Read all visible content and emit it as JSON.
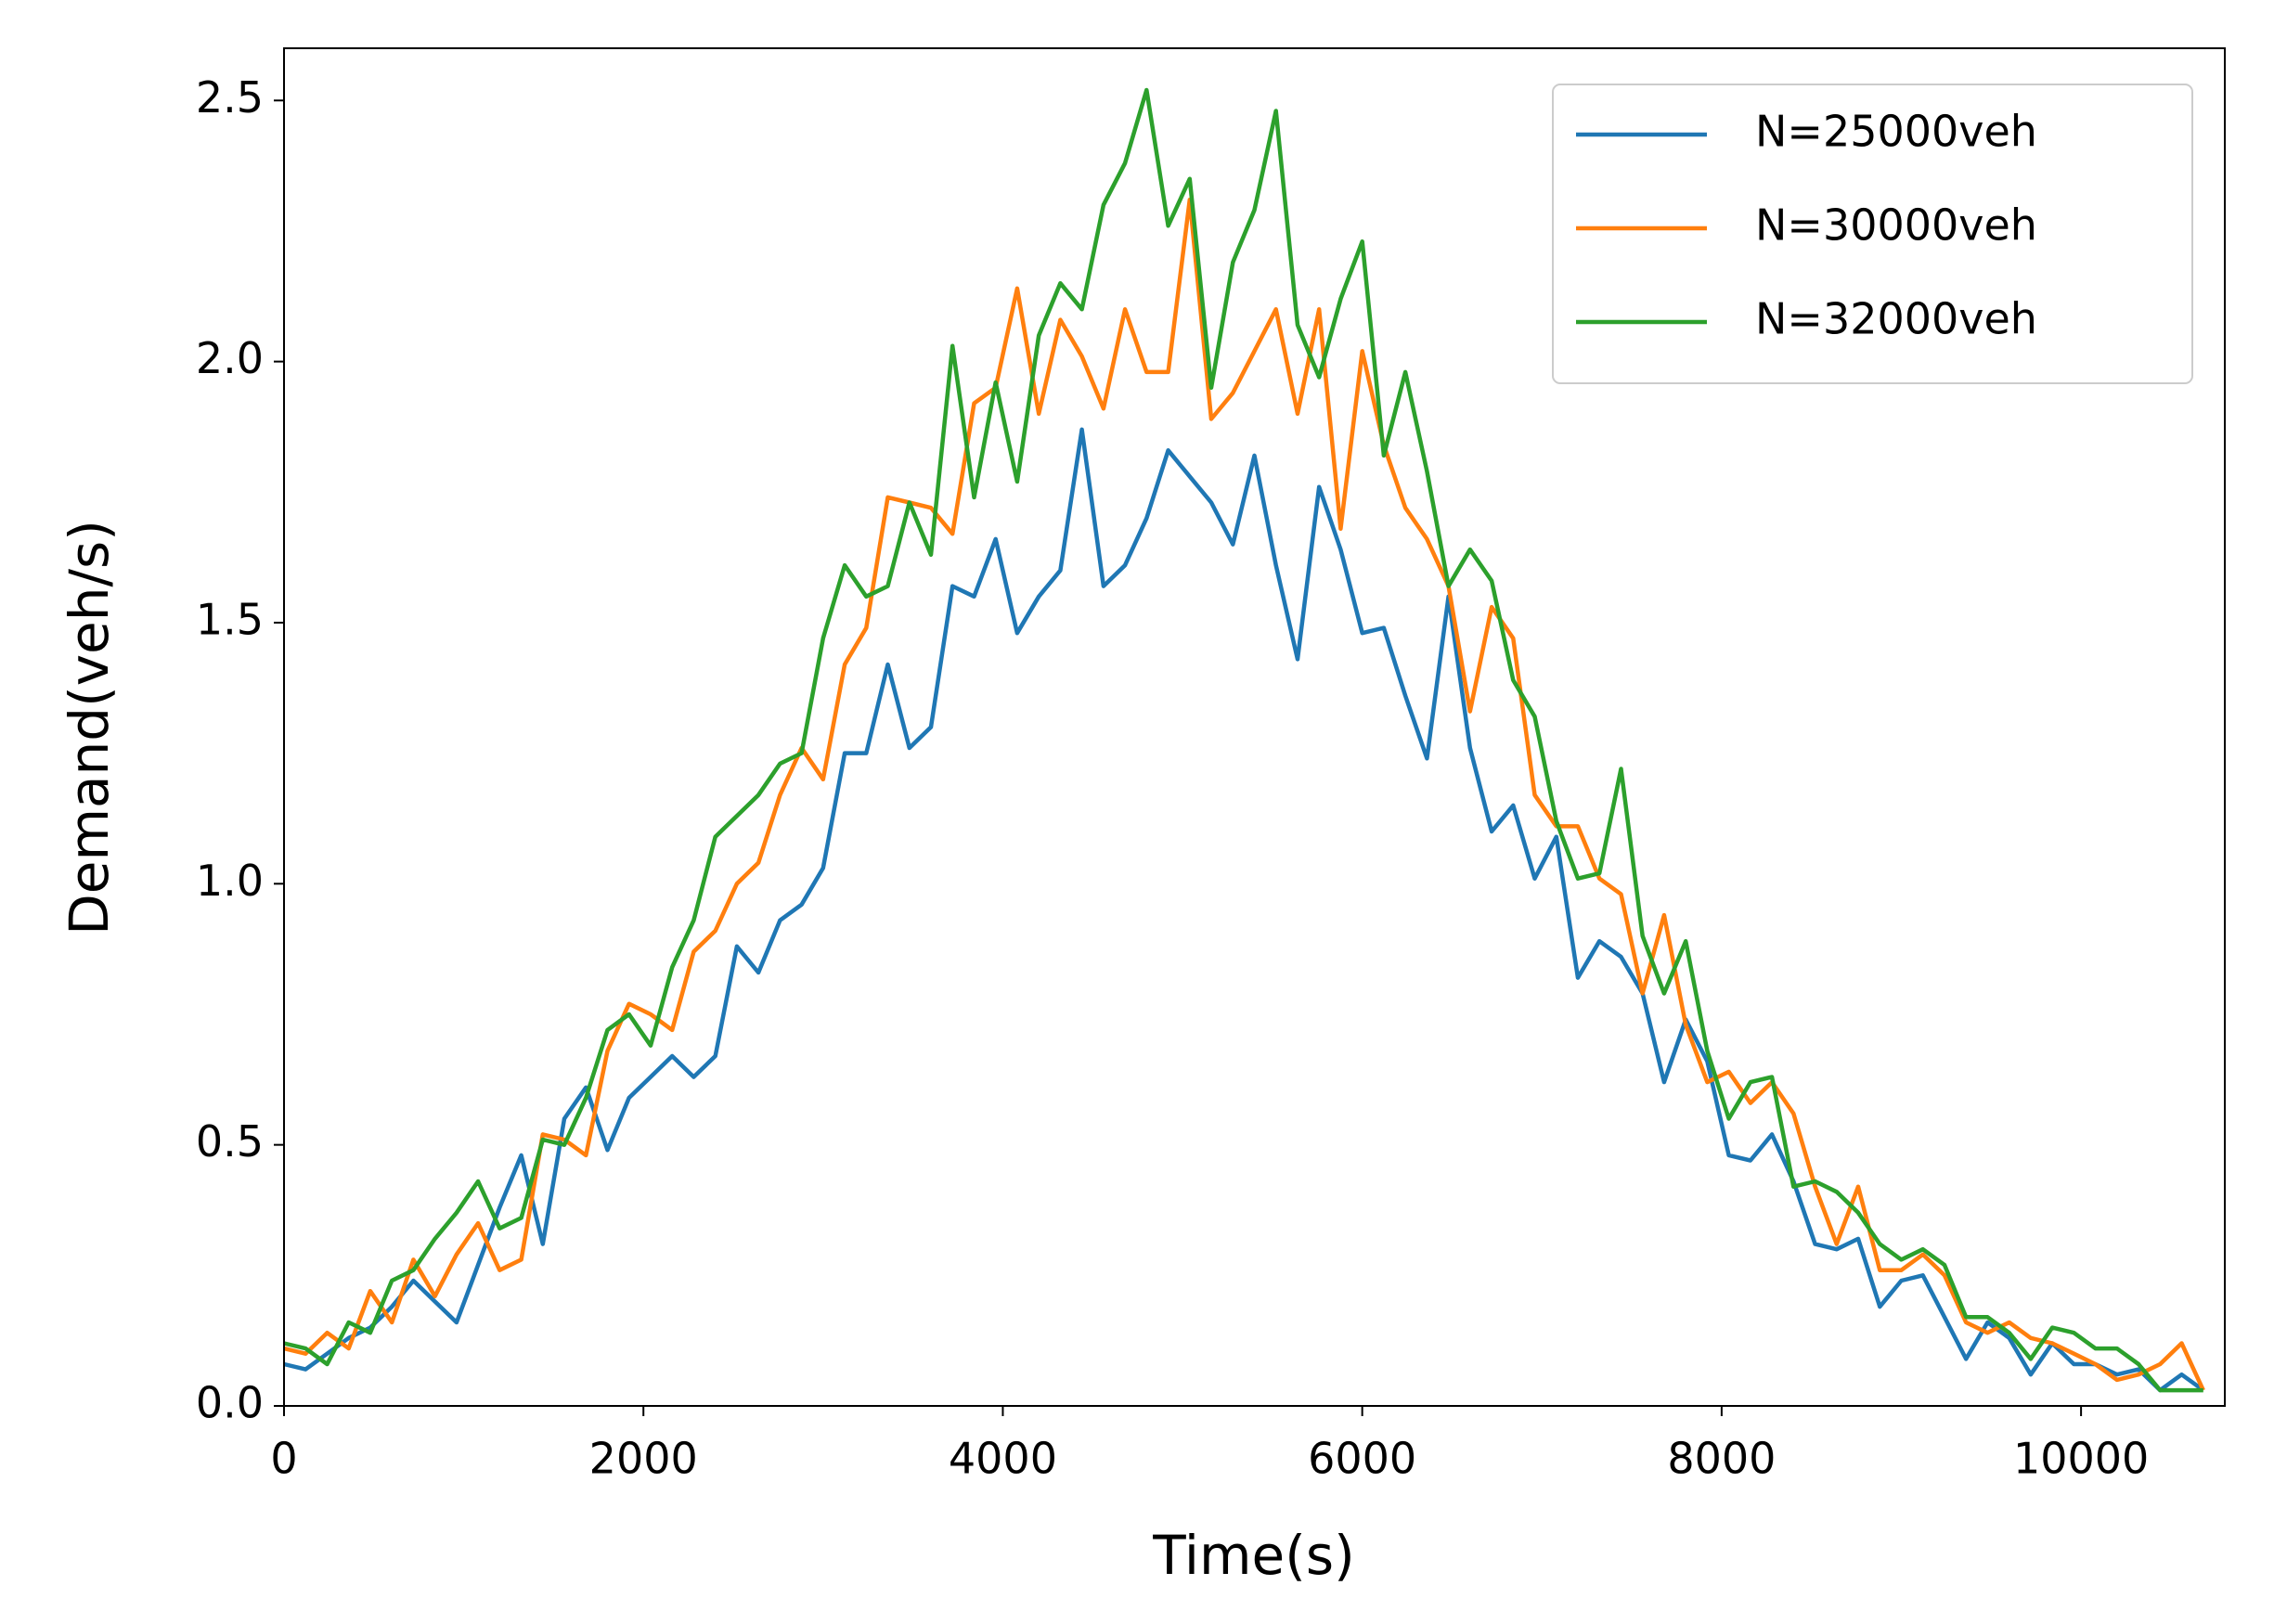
{
  "chart_data": {
    "type": "line",
    "xlabel": "Time(s)",
    "ylabel": "Demand(veh/s)",
    "x": [
      0,
      120,
      240,
      360,
      480,
      600,
      720,
      840,
      960,
      1080,
      1200,
      1320,
      1440,
      1560,
      1680,
      1800,
      1920,
      2040,
      2160,
      2280,
      2400,
      2520,
      2640,
      2760,
      2880,
      3000,
      3120,
      3240,
      3360,
      3480,
      3600,
      3720,
      3840,
      3960,
      4080,
      4200,
      4320,
      4440,
      4560,
      4680,
      4800,
      4920,
      5040,
      5160,
      5280,
      5400,
      5520,
      5640,
      5760,
      5880,
      6000,
      6120,
      6240,
      6360,
      6480,
      6600,
      6720,
      6840,
      6960,
      7080,
      7200,
      7320,
      7440,
      7560,
      7680,
      7800,
      7920,
      8040,
      8160,
      8280,
      8400,
      8520,
      8640,
      8760,
      8880,
      9000,
      9120,
      9240,
      9360,
      9480,
      9600,
      9720,
      9840,
      9960,
      10080,
      10200,
      10320,
      10440,
      10560,
      10680
    ],
    "series": [
      {
        "name": "N=25000veh",
        "color": "#1f77b4",
        "values": [
          0.08,
          0.07,
          0.1,
          0.13,
          0.15,
          0.19,
          0.24,
          0.2,
          0.16,
          0.27,
          0.38,
          0.48,
          0.31,
          0.55,
          0.61,
          0.49,
          0.59,
          0.63,
          0.67,
          0.63,
          0.67,
          0.88,
          0.83,
          0.93,
          0.96,
          1.03,
          1.25,
          1.25,
          1.42,
          1.26,
          1.3,
          1.57,
          1.55,
          1.66,
          1.48,
          1.55,
          1.6,
          1.87,
          1.57,
          1.61,
          1.7,
          1.83,
          1.78,
          1.73,
          1.65,
          1.82,
          1.61,
          1.43,
          1.76,
          1.64,
          1.48,
          1.49,
          1.36,
          1.24,
          1.55,
          1.26,
          1.1,
          1.15,
          1.01,
          1.09,
          0.82,
          0.89,
          0.86,
          0.79,
          0.62,
          0.74,
          0.66,
          0.48,
          0.47,
          0.52,
          0.43,
          0.31,
          0.3,
          0.32,
          0.19,
          0.24,
          0.25,
          0.17,
          0.09,
          0.16,
          0.13,
          0.06,
          0.12,
          0.08,
          0.08,
          0.06,
          0.07,
          0.03,
          0.06,
          0.03
        ]
      },
      {
        "name": "N=30000veh",
        "color": "#ff7f0e",
        "values": [
          0.11,
          0.1,
          0.14,
          0.11,
          0.22,
          0.16,
          0.28,
          0.21,
          0.29,
          0.35,
          0.26,
          0.28,
          0.52,
          0.51,
          0.48,
          0.68,
          0.77,
          0.75,
          0.72,
          0.87,
          0.91,
          1.0,
          1.04,
          1.17,
          1.26,
          1.2,
          1.42,
          1.49,
          1.74,
          1.73,
          1.72,
          1.67,
          1.92,
          1.95,
          2.14,
          1.9,
          2.08,
          2.01,
          1.91,
          2.1,
          1.98,
          1.98,
          2.31,
          1.89,
          1.94,
          2.02,
          2.1,
          1.9,
          2.1,
          1.68,
          2.02,
          1.84,
          1.72,
          1.66,
          1.57,
          1.33,
          1.53,
          1.47,
          1.17,
          1.11,
          1.11,
          1.01,
          0.98,
          0.79,
          0.94,
          0.73,
          0.62,
          0.64,
          0.58,
          0.62,
          0.56,
          0.42,
          0.31,
          0.42,
          0.26,
          0.26,
          0.29,
          0.25,
          0.16,
          0.14,
          0.16,
          0.13,
          0.12,
          0.1,
          0.08,
          0.05,
          0.06,
          0.08,
          0.12,
          0.03
        ]
      },
      {
        "name": "N=32000veh",
        "color": "#2ca02c",
        "values": [
          0.12,
          0.11,
          0.08,
          0.16,
          0.14,
          0.24,
          0.26,
          0.32,
          0.37,
          0.43,
          0.34,
          0.36,
          0.51,
          0.5,
          0.59,
          0.72,
          0.75,
          0.69,
          0.84,
          0.93,
          1.09,
          1.13,
          1.17,
          1.23,
          1.25,
          1.47,
          1.61,
          1.55,
          1.57,
          1.73,
          1.63,
          2.03,
          1.74,
          1.96,
          1.77,
          2.05,
          2.15,
          2.1,
          2.3,
          2.38,
          2.52,
          2.26,
          2.35,
          1.95,
          2.19,
          2.29,
          2.48,
          2.07,
          1.97,
          2.12,
          2.23,
          1.82,
          1.98,
          1.79,
          1.57,
          1.64,
          1.58,
          1.39,
          1.32,
          1.12,
          1.01,
          1.02,
          1.22,
          0.9,
          0.79,
          0.89,
          0.68,
          0.55,
          0.62,
          0.63,
          0.42,
          0.43,
          0.41,
          0.37,
          0.31,
          0.28,
          0.3,
          0.27,
          0.17,
          0.17,
          0.14,
          0.09,
          0.15,
          0.14,
          0.11,
          0.11,
          0.08,
          0.03,
          0.03,
          0.03
        ]
      }
    ],
    "xlim": [
      0,
      10800
    ],
    "xticks": [
      0,
      2000,
      4000,
      6000,
      8000,
      10000
    ],
    "ylim": [
      0,
      2.6
    ],
    "yticks": [
      {
        "value": 0,
        "label": "0.0"
      },
      0.5,
      {
        "value": 1,
        "label": "1.0"
      },
      1.5,
      {
        "value": 2,
        "label": "2.0"
      },
      2.5
    ],
    "legend": "upper right",
    "grid": false
  }
}
